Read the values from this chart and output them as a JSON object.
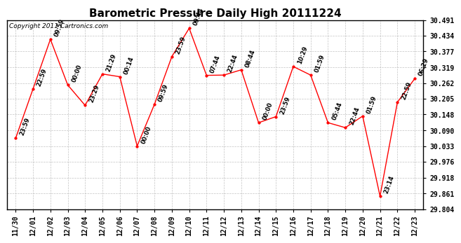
{
  "title": "Barometric Pressure Daily High 20111224",
  "copyright": "Copyright 2011 Cartronics.com",
  "x_labels": [
    "11/30",
    "12/01",
    "12/02",
    "12/03",
    "12/04",
    "12/05",
    "12/06",
    "12/07",
    "12/08",
    "12/09",
    "12/10",
    "12/11",
    "12/12",
    "12/13",
    "12/14",
    "12/15",
    "12/16",
    "12/17",
    "12/18",
    "12/19",
    "12/20",
    "12/21",
    "12/22",
    "12/23"
  ],
  "y_values": [
    30.062,
    30.241,
    30.421,
    30.255,
    30.181,
    30.295,
    30.285,
    30.033,
    30.185,
    30.358,
    30.461,
    30.29,
    30.291,
    30.31,
    30.118,
    30.14,
    30.322,
    30.291,
    30.118,
    30.1,
    30.142,
    29.851,
    30.192,
    30.278
  ],
  "time_labels": [
    "23:59",
    "22:59",
    "09:59",
    "00:00",
    "23:29",
    "21:29",
    "00:14",
    "00:00",
    "09:59",
    "23:59",
    "09:44",
    "07:44",
    "22:44",
    "08:44",
    "00:00",
    "23:59",
    "10:29",
    "01:59",
    "05:44",
    "22:44",
    "01:59",
    "23:14",
    "22:59",
    "06:29"
  ],
  "y_ticks": [
    29.804,
    29.861,
    29.918,
    29.976,
    30.033,
    30.09,
    30.148,
    30.205,
    30.262,
    30.319,
    30.377,
    30.434,
    30.491
  ],
  "line_color": "#FF0000",
  "marker_color": "#FF0000",
  "bg_color": "#FFFFFF",
  "grid_color": "#AAAAAA",
  "title_fontsize": 11,
  "label_fontsize": 6,
  "tick_fontsize": 7,
  "copyright_fontsize": 6.5
}
